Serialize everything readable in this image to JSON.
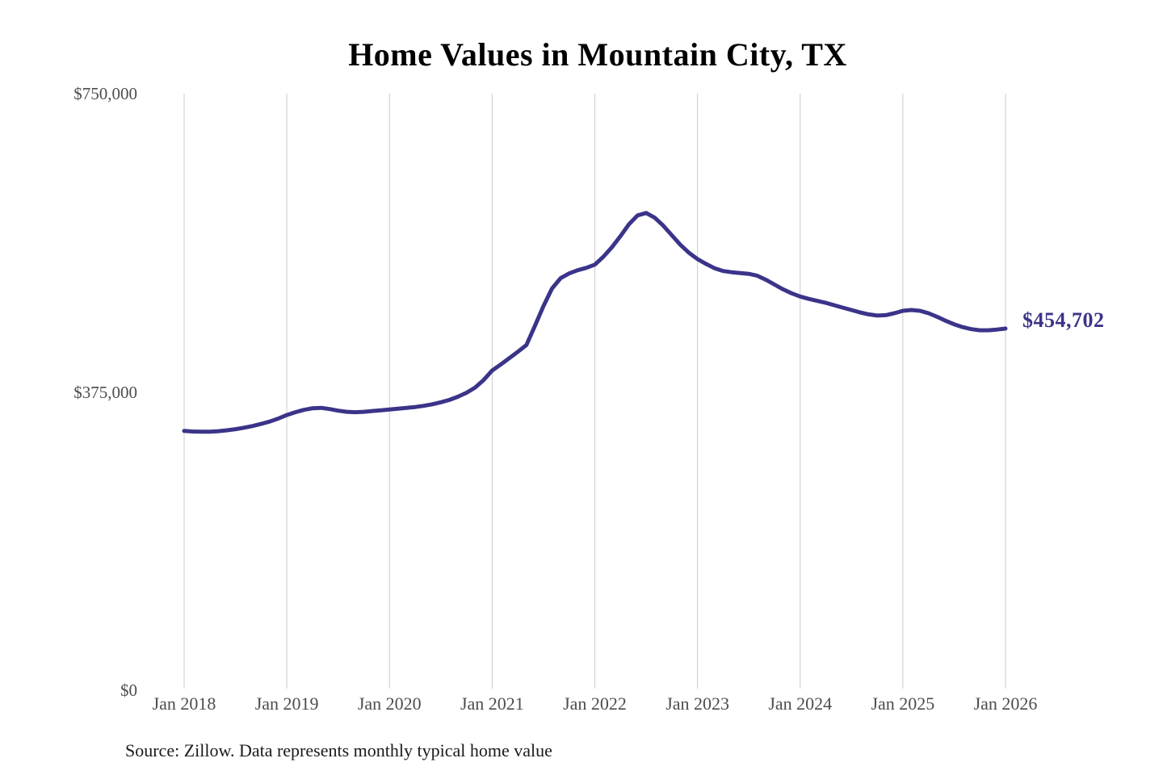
{
  "chart_data": {
    "type": "line",
    "title": "Home Values in Mountain City, TX",
    "source_note": "Source: Zillow. Data represents monthly typical home value",
    "end_label": "$454,702",
    "end_value": 454702,
    "xlabel": "",
    "ylabel": "",
    "ylim": [
      0,
      750000
    ],
    "grid": "vertical-only",
    "legend": "none",
    "x_ticks": [
      "Jan 2018",
      "Jan 2019",
      "Jan 2020",
      "Jan 2021",
      "Jan 2022",
      "Jan 2023",
      "Jan 2024",
      "Jan 2025",
      "Jan 2026"
    ],
    "y_ticks": [
      {
        "label": "$750,000",
        "value": 750000
      },
      {
        "label": "$375,000",
        "value": 375000
      },
      {
        "label": "$0",
        "value": 0
      }
    ],
    "series": [
      {
        "name": "Monthly typical home value",
        "unit": "USD",
        "interval": "monthly",
        "start": "Jan 2018",
        "end": "Jan 2026",
        "values": [
          326000,
          325300,
          325000,
          325100,
          325700,
          326800,
          328200,
          330000,
          332200,
          334800,
          337800,
          341500,
          346000,
          349500,
          352500,
          354500,
          355000,
          353500,
          351500,
          350000,
          349500,
          350000,
          351000,
          352000,
          353000,
          354000,
          355000,
          356000,
          357500,
          359500,
          362000,
          365000,
          369000,
          374000,
          380500,
          390000,
          402000,
          409500,
          417500,
          425500,
          434000,
          458000,
          483000,
          505000,
          518000,
          524000,
          528000,
          531000,
          535000,
          545000,
          557000,
          571000,
          586000,
          597000,
          600000,
          594000,
          584000,
          572000,
          560000,
          550000,
          542000,
          536000,
          530500,
          527000,
          525500,
          524500,
          523500,
          521000,
          516000,
          510000,
          504000,
          499000,
          495000,
          492000,
          489500,
          487000,
          484000,
          481000,
          478000,
          475000,
          472500,
          471000,
          471500,
          474000,
          477000,
          478000,
          477000,
          474000,
          469500,
          464500,
          460000,
          456500,
          454000,
          452500,
          452500,
          453500,
          454702
        ]
      }
    ],
    "colors": {
      "line": "#3a3489",
      "end_label": "#3a3489",
      "grid": "#cccccc",
      "tick_text": "#4d4d4d",
      "title_text": "#000000",
      "source_text": "#1a1a1a",
      "background": "#ffffff"
    }
  }
}
